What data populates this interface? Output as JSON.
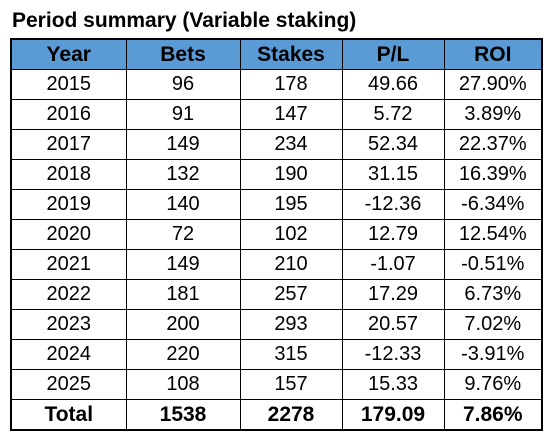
{
  "title": "Period summary (Variable staking)",
  "table": {
    "headers": [
      "Year",
      "Bets",
      "Stakes",
      "P/L",
      "ROI"
    ],
    "rows": [
      [
        "2015",
        "96",
        "178",
        "49.66",
        "27.90%"
      ],
      [
        "2016",
        "91",
        "147",
        "5.72",
        "3.89%"
      ],
      [
        "2017",
        "149",
        "234",
        "52.34",
        "22.37%"
      ],
      [
        "2018",
        "132",
        "190",
        "31.15",
        "16.39%"
      ],
      [
        "2019",
        "140",
        "195",
        "-12.36",
        "-6.34%"
      ],
      [
        "2020",
        "72",
        "102",
        "12.79",
        "12.54%"
      ],
      [
        "2021",
        "149",
        "210",
        "-1.07",
        "-0.51%"
      ],
      [
        "2022",
        "181",
        "257",
        "17.29",
        "6.73%"
      ],
      [
        "2023",
        "200",
        "293",
        "20.57",
        "7.02%"
      ],
      [
        "2024",
        "220",
        "315",
        "-12.33",
        "-3.91%"
      ],
      [
        "2025",
        "108",
        "157",
        "15.33",
        "9.76%"
      ]
    ],
    "total": [
      "Total",
      "1538",
      "2278",
      "179.09",
      "7.86%"
    ]
  },
  "colors": {
    "header_background": "#5b9bd5",
    "border": "#000000",
    "text": "#000000"
  }
}
